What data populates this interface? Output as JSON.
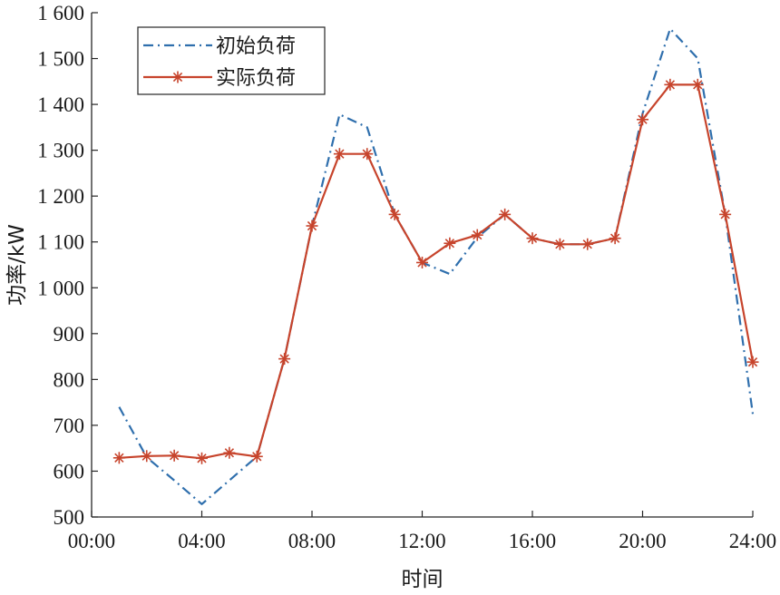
{
  "chart_data": {
    "type": "line",
    "xlabel": "时间",
    "ylabel": "功率/kW",
    "xlim": [
      0,
      24
    ],
    "ylim": [
      500,
      1600
    ],
    "x_ticks": [
      0,
      4,
      8,
      12,
      16,
      20,
      24
    ],
    "x_tick_labels": [
      "00:00",
      "04:00",
      "08:00",
      "12:00",
      "16:00",
      "20:00",
      "24:00"
    ],
    "y_ticks": [
      500,
      600,
      700,
      800,
      900,
      1000,
      1100,
      1200,
      1300,
      1400,
      1500,
      1600
    ],
    "y_tick_labels": [
      "500",
      "600",
      "700",
      "800",
      "900",
      "1 000",
      "1 100",
      "1 200",
      "1 300",
      "1 400",
      "1 500",
      "1 600"
    ],
    "legend_position": "top-left",
    "x": [
      1,
      2,
      3,
      4,
      5,
      6,
      7,
      8,
      9,
      10,
      11,
      12,
      13,
      14,
      15,
      16,
      17,
      18,
      19,
      20,
      21,
      22,
      23,
      24
    ],
    "series": [
      {
        "name": "初始负荷",
        "style": "dash-dot",
        "color": "#2f6fad",
        "marker": "none",
        "values": [
          740,
          630,
          580,
          528,
          580,
          632,
          845,
          1135,
          1378,
          1350,
          1160,
          1055,
          1030,
          1110,
          1160,
          1108,
          1095,
          1095,
          1108,
          1380,
          1565,
          1500,
          1160,
          725
        ]
      },
      {
        "name": "实际负荷",
        "style": "solid",
        "color": "#c7442c",
        "marker": "asterisk",
        "values": [
          629,
          633,
          634,
          628,
          640,
          632,
          845,
          1135,
          1292,
          1292,
          1160,
          1055,
          1097,
          1115,
          1160,
          1108,
          1095,
          1095,
          1108,
          1367,
          1443,
          1443,
          1160,
          838
        ]
      }
    ]
  }
}
